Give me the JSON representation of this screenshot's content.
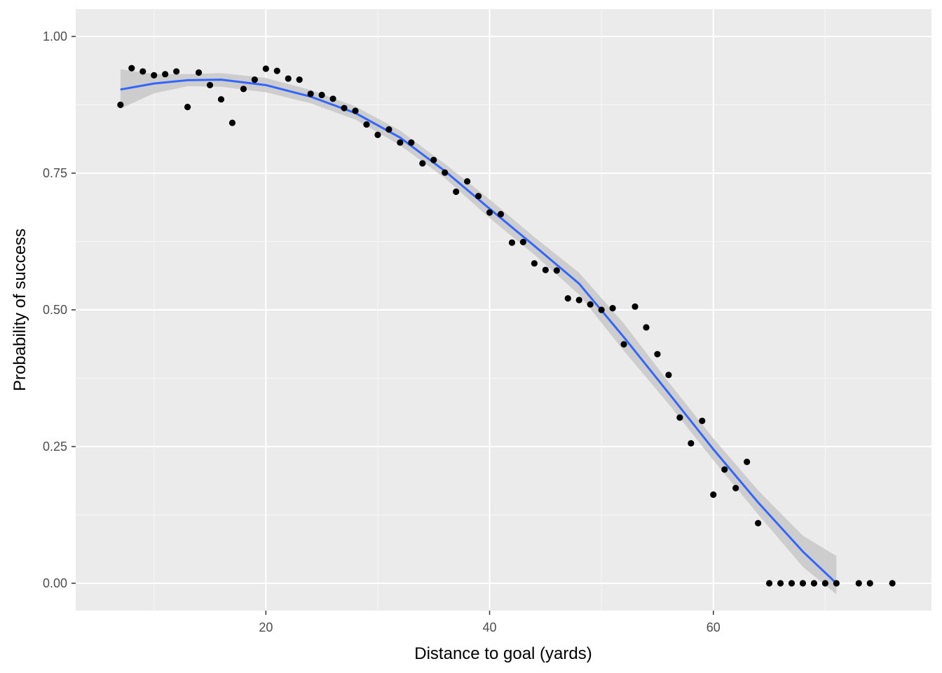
{
  "chart_data": {
    "type": "scatter",
    "title": "",
    "xlabel": "Distance to goal (yards)",
    "ylabel": "Probability of success",
    "xlim": [
      3,
      79.5
    ],
    "ylim": [
      -0.05,
      1.05
    ],
    "x_ticks": [
      20,
      40,
      60
    ],
    "x_tick_labels": [
      "20",
      "40",
      "60"
    ],
    "y_ticks": [
      0,
      0.25,
      0.5,
      0.75,
      1.0
    ],
    "y_tick_labels": [
      "0.00",
      "0.25",
      "0.50",
      "0.75",
      "1.00"
    ],
    "grid": true,
    "points": {
      "x": [
        7,
        8,
        9,
        10,
        11,
        12,
        13,
        14,
        15,
        16,
        17,
        18,
        19,
        20,
        21,
        22,
        23,
        24,
        25,
        26,
        27,
        28,
        29,
        30,
        31,
        32,
        33,
        34,
        35,
        36,
        37,
        38,
        39,
        40,
        41,
        42,
        43,
        44,
        45,
        46,
        47,
        48,
        49,
        50,
        51,
        52,
        53,
        54,
        55,
        56,
        57,
        58,
        59,
        60,
        61,
        62,
        63,
        64,
        65,
        66,
        67,
        68,
        69,
        70,
        71,
        73,
        74,
        76
      ],
      "y": [
        0.875,
        0.942,
        0.936,
        0.929,
        0.931,
        0.936,
        0.871,
        0.934,
        0.911,
        0.885,
        0.842,
        0.904,
        0.921,
        0.941,
        0.937,
        0.923,
        0.921,
        0.895,
        0.893,
        0.886,
        0.869,
        0.864,
        0.839,
        0.82,
        0.83,
        0.806,
        0.806,
        0.768,
        0.774,
        0.751,
        0.716,
        0.735,
        0.708,
        0.678,
        0.675,
        0.623,
        0.624,
        0.585,
        0.573,
        0.572,
        0.521,
        0.518,
        0.51,
        0.5,
        0.503,
        0.437,
        0.506,
        0.468,
        0.419,
        0.381,
        0.303,
        0.256,
        0.297,
        0.162,
        0.208,
        0.174,
        0.222,
        0.11,
        0.0,
        0.0,
        0.0,
        0.0,
        0.0,
        0.0,
        0.0,
        0.0,
        0.0,
        0.0
      ]
    },
    "smooth": {
      "x": [
        7,
        10,
        13,
        16,
        20,
        24,
        28,
        32,
        36,
        40,
        44,
        48,
        52,
        56,
        60,
        64,
        68,
        71
      ],
      "y": [
        0.903,
        0.914,
        0.92,
        0.921,
        0.911,
        0.89,
        0.86,
        0.815,
        0.754,
        0.685,
        0.617,
        0.548,
        0.45,
        0.348,
        0.245,
        0.148,
        0.058,
        0.0
      ],
      "se_upper": [
        0.94,
        0.931,
        0.931,
        0.933,
        0.924,
        0.902,
        0.872,
        0.828,
        0.767,
        0.702,
        0.633,
        0.568,
        0.475,
        0.368,
        0.265,
        0.17,
        0.087,
        0.05
      ],
      "se_lower": [
        0.868,
        0.896,
        0.909,
        0.908,
        0.898,
        0.878,
        0.848,
        0.801,
        0.741,
        0.668,
        0.601,
        0.528,
        0.425,
        0.328,
        0.225,
        0.126,
        0.03,
        -0.02
      ]
    },
    "colors": {
      "panel": "#ebebeb",
      "grid_major": "#ffffff",
      "point": "#000000",
      "smooth_line": "#3366ff",
      "confidence_band": "#c8c8c8"
    }
  }
}
